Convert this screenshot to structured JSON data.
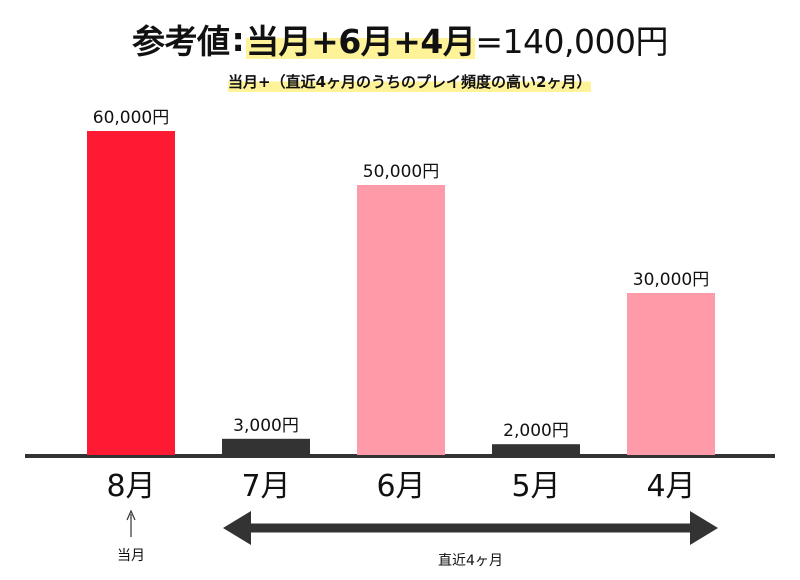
{
  "title": {
    "label": "参考値",
    "separator": ":",
    "highlight": "当月+6月+4月",
    "rhs": "=140,000円"
  },
  "subtitle": "当月+（直近4ヶ月のうちのプレイ頻度の高い2ヶ月）",
  "annotations": {
    "current_month": "当月",
    "recent_months": "直近4ヶ月"
  },
  "colors": {
    "current": "#ff1a33",
    "selected": "#ff9aa8",
    "other": "#333333",
    "baseline": "#333333",
    "highlight": "#fff39a"
  },
  "chart_data": {
    "type": "bar",
    "categories": [
      "8月",
      "7月",
      "6月",
      "5月",
      "4月"
    ],
    "values": [
      60000,
      3000,
      50000,
      2000,
      30000
    ],
    "value_labels": [
      "60,000円",
      "3,000円",
      "50,000円",
      "2,000円",
      "30,000円"
    ],
    "bar_groups": [
      "current",
      "other",
      "selected",
      "other",
      "selected"
    ],
    "ylim": [
      0,
      60000
    ],
    "grid": false,
    "legend": "none",
    "title": "参考値:当月+6月+4月=140,000円",
    "xlabel": "",
    "ylabel": ""
  }
}
